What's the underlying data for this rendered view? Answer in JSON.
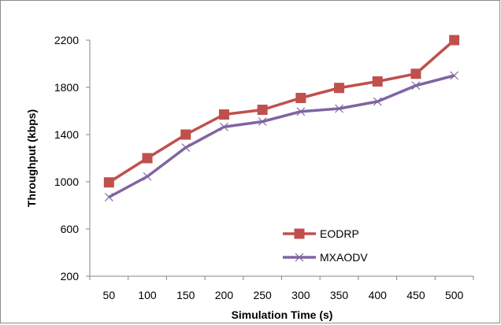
{
  "chart_data": {
    "type": "line",
    "title": "",
    "xlabel": "Simulation Time (s)",
    "ylabel": "Throughput (kbps)",
    "categories": [
      "50",
      "100",
      "150",
      "200",
      "250",
      "300",
      "350",
      "400",
      "450",
      "500"
    ],
    "y_ticks": [
      "200",
      "600",
      "1000",
      "1400",
      "1800",
      "2200"
    ],
    "ylim": [
      200,
      2200
    ],
    "grid": false,
    "legend_position": "bottom-right inside plot",
    "series": [
      {
        "name": "EODRP",
        "color": "#c0504d",
        "marker": "square",
        "values": [
          995,
          1200,
          1400,
          1570,
          1610,
          1710,
          1795,
          1850,
          1915,
          2200
        ]
      },
      {
        "name": "MXAODV",
        "color": "#8064a2",
        "marker": "x",
        "values": [
          870,
          1045,
          1290,
          1465,
          1510,
          1595,
          1620,
          1680,
          1815,
          1900
        ]
      }
    ]
  }
}
